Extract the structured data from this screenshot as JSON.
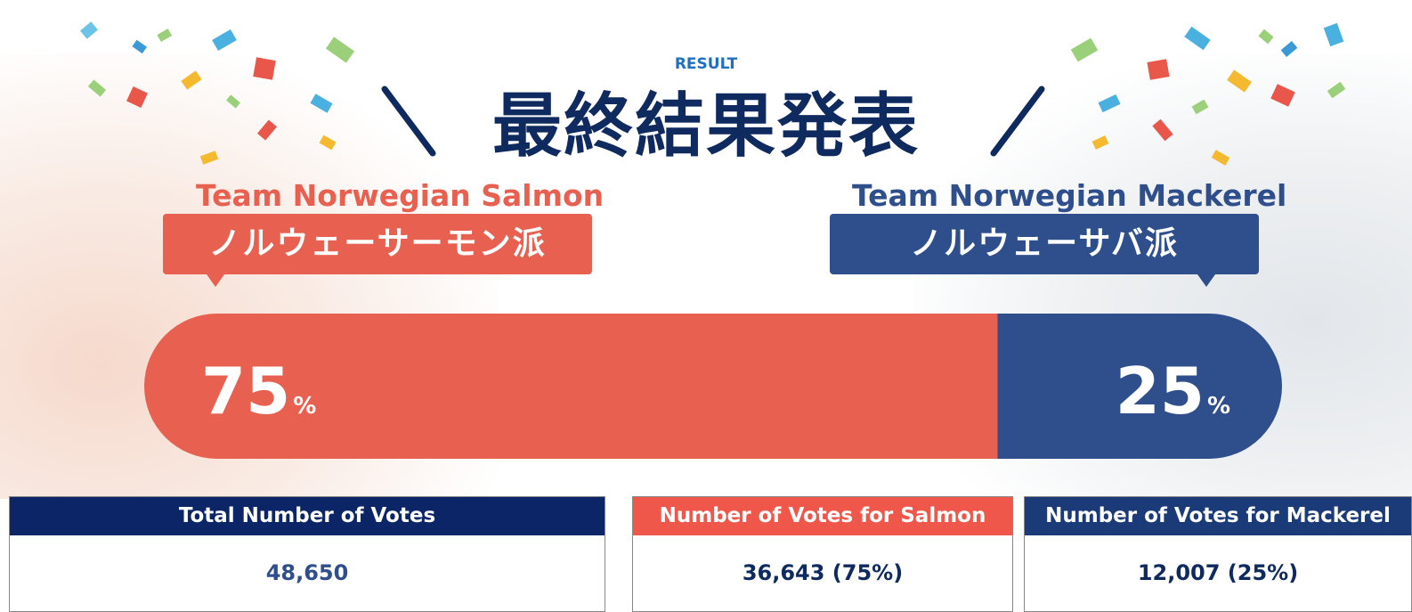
{
  "header": {
    "eyebrow": "RESULT",
    "title": "最終結果発表"
  },
  "teams": [
    {
      "name_en": "Team Norwegian Salmon",
      "name_ja": "ノルウェーサーモン派",
      "color": "#e8604f",
      "percent": 75,
      "unit": "%"
    },
    {
      "name_en": "Team Norwegian Mackerel",
      "name_ja": "ノルウェーサバ派",
      "color": "#2f4f8c",
      "percent": 25,
      "unit": "%"
    }
  ],
  "stats": [
    {
      "header": "Total Number of Votes",
      "value": "48,650"
    },
    {
      "header": "Number of Votes for Salmon",
      "value": "36,643 (75%)"
    },
    {
      "header": "Number of Votes for Mackerel",
      "value": "12,007 (25%)"
    }
  ]
}
